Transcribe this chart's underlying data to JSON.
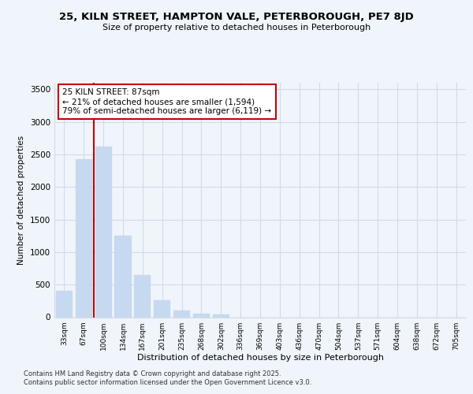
{
  "title": "25, KILN STREET, HAMPTON VALE, PETERBOROUGH, PE7 8JD",
  "subtitle": "Size of property relative to detached houses in Peterborough",
  "xlabel": "Distribution of detached houses by size in Peterborough",
  "ylabel": "Number of detached properties",
  "property_label": "25 KILN STREET: 87sqm",
  "annotation_line1": "← 21% of detached houses are smaller (1,594)",
  "annotation_line2": "79% of semi-detached houses are larger (6,119) →",
  "categories": [
    "33sqm",
    "67sqm",
    "100sqm",
    "134sqm",
    "167sqm",
    "201sqm",
    "235sqm",
    "268sqm",
    "302sqm",
    "336sqm",
    "369sqm",
    "403sqm",
    "436sqm",
    "470sqm",
    "504sqm",
    "537sqm",
    "571sqm",
    "604sqm",
    "638sqm",
    "672sqm",
    "705sqm"
  ],
  "values": [
    400,
    2425,
    2625,
    1250,
    650,
    260,
    100,
    50,
    40,
    0,
    0,
    0,
    0,
    0,
    0,
    0,
    0,
    0,
    0,
    0,
    0
  ],
  "bar_color": "#c6d9f0",
  "bar_edge_color": "#c6d9f0",
  "vline_x": 1.5,
  "annotation_box_color": "#ffffff",
  "annotation_box_edge": "#cc0000",
  "vline_color": "#cc0000",
  "ylim": [
    0,
    3600
  ],
  "yticks": [
    0,
    500,
    1000,
    1500,
    2000,
    2500,
    3000,
    3500
  ],
  "grid_color": "#d0dce8",
  "background_color": "#f0f5fb",
  "footer_line1": "Contains HM Land Registry data © Crown copyright and database right 2025.",
  "footer_line2": "Contains public sector information licensed under the Open Government Licence v3.0."
}
